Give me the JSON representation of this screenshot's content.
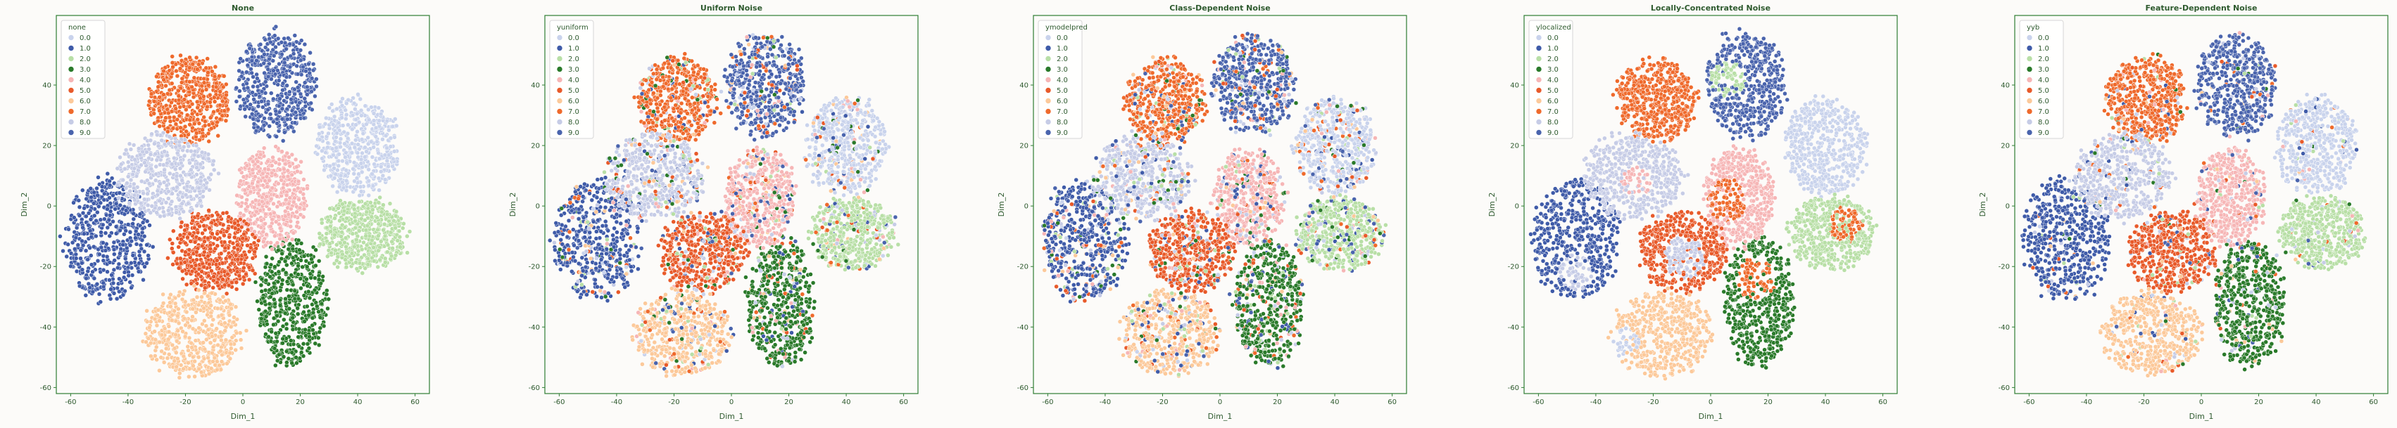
{
  "colors": {
    "frame": "#2e7d32",
    "text": "#2e5a2e",
    "background": "#fcfbf9",
    "classes": [
      "#c9d3ec",
      "#3f5ba8",
      "#b8dfa6",
      "#2a7a2a",
      "#f6b6b6",
      "#e85a2a",
      "#fcc99a",
      "#ef6a2c",
      "#c6cce6",
      "#4a64ad"
    ]
  },
  "chart_data": [
    {
      "type": "scatter",
      "title": "None",
      "xlabel": "Dim_1",
      "ylabel": "Dim_2",
      "xlim": [
        -65,
        65
      ],
      "ylim": [
        -62,
        63
      ],
      "xticks": [
        -60,
        -40,
        -20,
        0,
        20,
        40,
        60
      ],
      "yticks": [
        -60,
        -40,
        -20,
        0,
        20,
        40
      ],
      "grid": false,
      "legend_position": "upper-left",
      "legend_title": "none",
      "legend_labels": [
        "0.0",
        "1.0",
        "2.0",
        "3.0",
        "4.0",
        "5.0",
        "6.0",
        "7.0",
        "8.0",
        "9.0"
      ],
      "noise_level": 0.0,
      "clusters": [
        {
          "label": "0.0",
          "cx": 40,
          "cy": 20,
          "rx": 14,
          "ry": 16
        },
        {
          "label": "1.0",
          "cx": -47,
          "cy": -11,
          "rx": 15,
          "ry": 20
        },
        {
          "label": "2.0",
          "cx": 42,
          "cy": -9,
          "rx": 15,
          "ry": 12
        },
        {
          "label": "3.0",
          "cx": 17,
          "cy": -32,
          "rx": 12,
          "ry": 21
        },
        {
          "label": "4.0",
          "cx": 10,
          "cy": 3,
          "rx": 12,
          "ry": 16
        },
        {
          "label": "5.0",
          "cx": -10,
          "cy": -15,
          "rx": 15,
          "ry": 13
        },
        {
          "label": "6.0",
          "cx": -17,
          "cy": -42,
          "rx": 17,
          "ry": 14
        },
        {
          "label": "7.0",
          "cx": -19,
          "cy": 35,
          "rx": 14,
          "ry": 14
        },
        {
          "label": "8.0",
          "cx": -27,
          "cy": 10,
          "rx": 17,
          "ry": 14
        },
        {
          "label": "9.0",
          "cx": 12,
          "cy": 40,
          "rx": 14,
          "ry": 17
        }
      ]
    },
    {
      "type": "scatter",
      "title": "Uniform Noise",
      "xlabel": "Dim_1",
      "ylabel": "Dim_2",
      "xlim": [
        -65,
        65
      ],
      "ylim": [
        -62,
        63
      ],
      "xticks": [
        -60,
        -40,
        -20,
        0,
        20,
        40,
        60
      ],
      "yticks": [
        -60,
        -40,
        -20,
        0,
        20,
        40
      ],
      "grid": false,
      "legend_position": "upper-left",
      "legend_title": "yuniform",
      "legend_labels": [
        "0.0",
        "1.0",
        "2.0",
        "3.0",
        "4.0",
        "5.0",
        "6.0",
        "7.0",
        "8.0",
        "9.0"
      ],
      "noise_level": 0.25,
      "clusters": [
        {
          "label": "0.0",
          "cx": 40,
          "cy": 20,
          "rx": 14,
          "ry": 16
        },
        {
          "label": "1.0",
          "cx": -47,
          "cy": -11,
          "rx": 15,
          "ry": 20
        },
        {
          "label": "2.0",
          "cx": 42,
          "cy": -9,
          "rx": 15,
          "ry": 12
        },
        {
          "label": "3.0",
          "cx": 17,
          "cy": -32,
          "rx": 12,
          "ry": 21
        },
        {
          "label": "4.0",
          "cx": 10,
          "cy": 3,
          "rx": 12,
          "ry": 16
        },
        {
          "label": "5.0",
          "cx": -10,
          "cy": -15,
          "rx": 15,
          "ry": 13
        },
        {
          "label": "6.0",
          "cx": -17,
          "cy": -42,
          "rx": 17,
          "ry": 14
        },
        {
          "label": "7.0",
          "cx": -19,
          "cy": 35,
          "rx": 14,
          "ry": 14
        },
        {
          "label": "8.0",
          "cx": -27,
          "cy": 10,
          "rx": 17,
          "ry": 14
        },
        {
          "label": "9.0",
          "cx": 12,
          "cy": 40,
          "rx": 14,
          "ry": 17
        }
      ]
    },
    {
      "type": "scatter",
      "title": "Class-Dependent Noise",
      "xlabel": "Dim_1",
      "ylabel": "Dim_2",
      "xlim": [
        -65,
        65
      ],
      "ylim": [
        -62,
        63
      ],
      "xticks": [
        -60,
        -40,
        -20,
        0,
        20,
        40,
        60
      ],
      "yticks": [
        -60,
        -40,
        -20,
        0,
        20,
        40
      ],
      "grid": false,
      "legend_position": "upper-left",
      "legend_title": "ymodelpred",
      "legend_labels": [
        "0.0",
        "1.0",
        "2.0",
        "3.0",
        "4.0",
        "5.0",
        "6.0",
        "7.0",
        "8.0",
        "9.0"
      ],
      "noise_level": 0.3,
      "clusters": [
        {
          "label": "0.0",
          "cx": 40,
          "cy": 20,
          "rx": 14,
          "ry": 16
        },
        {
          "label": "1.0",
          "cx": -47,
          "cy": -11,
          "rx": 15,
          "ry": 20
        },
        {
          "label": "2.0",
          "cx": 42,
          "cy": -9,
          "rx": 15,
          "ry": 12
        },
        {
          "label": "3.0",
          "cx": 17,
          "cy": -32,
          "rx": 12,
          "ry": 21
        },
        {
          "label": "4.0",
          "cx": 10,
          "cy": 3,
          "rx": 12,
          "ry": 16
        },
        {
          "label": "5.0",
          "cx": -10,
          "cy": -15,
          "rx": 15,
          "ry": 13
        },
        {
          "label": "6.0",
          "cx": -17,
          "cy": -42,
          "rx": 17,
          "ry": 14
        },
        {
          "label": "7.0",
          "cx": -19,
          "cy": 35,
          "rx": 14,
          "ry": 14
        },
        {
          "label": "8.0",
          "cx": -27,
          "cy": 10,
          "rx": 17,
          "ry": 14
        },
        {
          "label": "9.0",
          "cx": 12,
          "cy": 40,
          "rx": 14,
          "ry": 17
        }
      ]
    },
    {
      "type": "scatter",
      "title": "Locally-Concentrated Noise",
      "xlabel": "Dim_1",
      "ylabel": "Dim_2",
      "xlim": [
        -65,
        65
      ],
      "ylim": [
        -62,
        63
      ],
      "xticks": [
        -60,
        -40,
        -20,
        0,
        20,
        40,
        60
      ],
      "yticks": [
        -60,
        -40,
        -20,
        0,
        20,
        40
      ],
      "grid": false,
      "legend_position": "upper-left",
      "legend_title": "ylocalized",
      "legend_labels": [
        "0.0",
        "1.0",
        "2.0",
        "3.0",
        "4.0",
        "5.0",
        "6.0",
        "7.0",
        "8.0",
        "9.0"
      ],
      "noise_level": 0.0,
      "clusters": [
        {
          "label": "0.0",
          "cx": 40,
          "cy": 20,
          "rx": 14,
          "ry": 16
        },
        {
          "label": "1.0",
          "cx": -47,
          "cy": -11,
          "rx": 15,
          "ry": 20
        },
        {
          "label": "2.0",
          "cx": 42,
          "cy": -9,
          "rx": 15,
          "ry": 12
        },
        {
          "label": "3.0",
          "cx": 17,
          "cy": -32,
          "rx": 12,
          "ry": 21
        },
        {
          "label": "4.0",
          "cx": 10,
          "cy": 3,
          "rx": 12,
          "ry": 16
        },
        {
          "label": "5.0",
          "cx": -10,
          "cy": -15,
          "rx": 15,
          "ry": 13
        },
        {
          "label": "6.0",
          "cx": -17,
          "cy": -42,
          "rx": 17,
          "ry": 14
        },
        {
          "label": "7.0",
          "cx": -19,
          "cy": 35,
          "rx": 14,
          "ry": 14
        },
        {
          "label": "8.0",
          "cx": -27,
          "cy": 10,
          "rx": 17,
          "ry": 14
        },
        {
          "label": "9.0",
          "cx": 12,
          "cy": 40,
          "rx": 14,
          "ry": 17
        }
      ],
      "patches": [
        {
          "cx": 6,
          "cy": 42,
          "r": 6,
          "label": "2.0"
        },
        {
          "cx": 6,
          "cy": 2,
          "r": 7,
          "label": "7.0"
        },
        {
          "cx": -26,
          "cy": 8,
          "r": 5,
          "label": "4.0"
        },
        {
          "cx": -9,
          "cy": -17,
          "r": 7,
          "label": "8.0"
        },
        {
          "cx": 47,
          "cy": -6,
          "r": 6,
          "label": "7.0"
        },
        {
          "cx": 16,
          "cy": -24,
          "r": 7,
          "label": "7.0"
        },
        {
          "cx": -30,
          "cy": -45,
          "r": 5,
          "label": "0.0"
        },
        {
          "cx": -47,
          "cy": -22,
          "r": 6,
          "label": "8.0"
        }
      ]
    },
    {
      "type": "scatter",
      "title": "Feature-Dependent Noise",
      "xlabel": "Dim_1",
      "ylabel": "Dim_2",
      "xlim": [
        -65,
        65
      ],
      "ylim": [
        -62,
        63
      ],
      "xticks": [
        -60,
        -40,
        -20,
        0,
        20,
        40,
        60
      ],
      "yticks": [
        -60,
        -40,
        -20,
        0,
        20,
        40
      ],
      "grid": false,
      "legend_position": "upper-left",
      "legend_title": "yyb",
      "legend_labels": [
        "0.0",
        "1.0",
        "2.0",
        "3.0",
        "4.0",
        "5.0",
        "6.0",
        "7.0",
        "8.0",
        "9.0"
      ],
      "noise_level": 0.12,
      "clusters": [
        {
          "label": "0.0",
          "cx": 40,
          "cy": 20,
          "rx": 14,
          "ry": 16
        },
        {
          "label": "1.0",
          "cx": -47,
          "cy": -11,
          "rx": 15,
          "ry": 20
        },
        {
          "label": "2.0",
          "cx": 42,
          "cy": -9,
          "rx": 15,
          "ry": 12
        },
        {
          "label": "3.0",
          "cx": 17,
          "cy": -32,
          "rx": 12,
          "ry": 21
        },
        {
          "label": "4.0",
          "cx": 10,
          "cy": 3,
          "rx": 12,
          "ry": 16
        },
        {
          "label": "5.0",
          "cx": -10,
          "cy": -15,
          "rx": 15,
          "ry": 13
        },
        {
          "label": "6.0",
          "cx": -17,
          "cy": -42,
          "rx": 17,
          "ry": 14
        },
        {
          "label": "7.0",
          "cx": -19,
          "cy": 35,
          "rx": 14,
          "ry": 14
        },
        {
          "label": "8.0",
          "cx": -27,
          "cy": 10,
          "rx": 17,
          "ry": 14
        },
        {
          "label": "9.0",
          "cx": 12,
          "cy": 40,
          "rx": 14,
          "ry": 17
        }
      ]
    }
  ]
}
